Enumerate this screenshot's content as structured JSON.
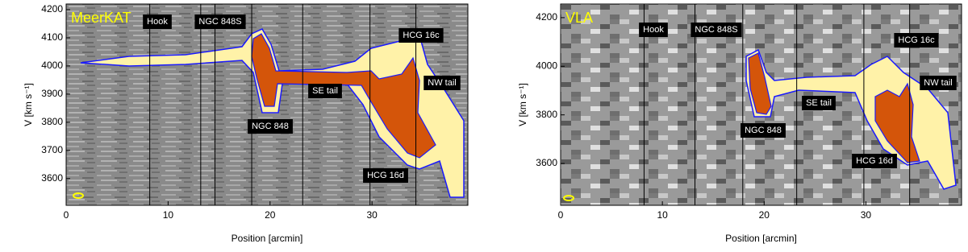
{
  "chart_data": [
    {
      "type": "pv",
      "title": "MeerKAT",
      "xlabel": "Position [arcmin]",
      "ylabel": "V [km s⁻¹]",
      "xlim": [
        0,
        39.4
      ],
      "ylim": [
        3505,
        4220
      ],
      "xticks": [
        0,
        10,
        20,
        30
      ],
      "yticks": [
        3600,
        3700,
        3800,
        3900,
        4000,
        4100,
        4200
      ],
      "vlines": [
        8.2,
        13.2,
        14.6,
        18.2,
        23.2,
        29.8,
        34.3
      ],
      "annotations": [
        "Hook",
        "NGC 848S",
        "NGC 848",
        "SE tail",
        "HCG 16c",
        "NW tail",
        "HCG 16d"
      ]
    },
    {
      "type": "pv",
      "title": "VLA",
      "xlabel": "Position [arcmin]",
      "ylabel": "V [km s⁻¹]",
      "xlim": [
        0,
        39.4
      ],
      "ylim": [
        3428,
        4256
      ],
      "xticks": [
        0,
        10,
        20,
        30
      ],
      "yticks": [
        3600,
        3800,
        4000,
        4200
      ],
      "vlines": [
        8.2,
        13.2,
        17.9,
        23.2,
        29.8,
        34.3
      ],
      "annotations": [
        "Hook",
        "NGC 848S",
        "NGC 848",
        "SE tail",
        "HCG 16c",
        "NW tail",
        "HCG 16d"
      ]
    }
  ]
}
